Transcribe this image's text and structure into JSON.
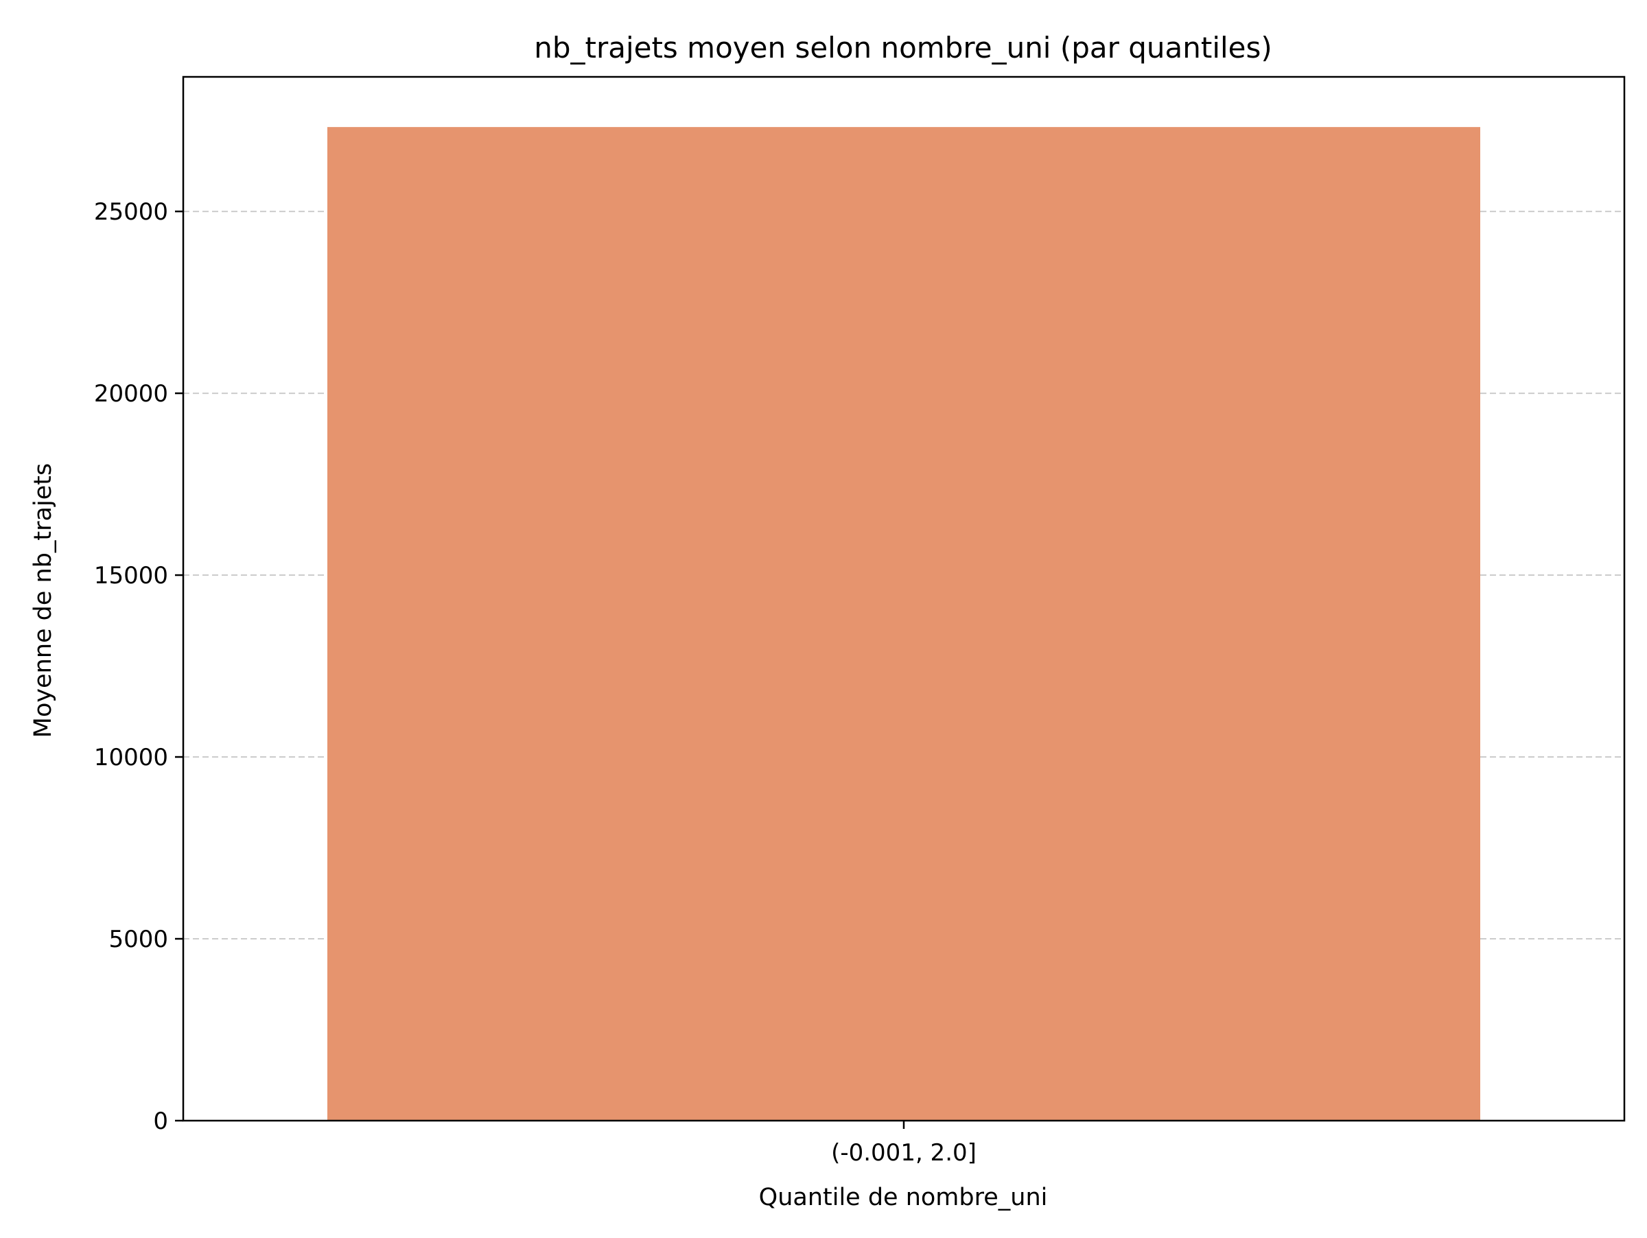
{
  "chart_data": {
    "type": "bar",
    "title": "nb_trajets moyen selon nombre_uni (par quantiles)",
    "xlabel": "Quantile de nombre_uni",
    "ylabel": "Moyenne de nb_trajets",
    "categories": [
      "(-0.001, 2.0]"
    ],
    "values": [
      27320
    ],
    "ylim": [
      0,
      28700
    ],
    "yticks": [
      0,
      5000,
      10000,
      15000,
      20000,
      25000
    ],
    "ytick_labels": [
      "0",
      "5000",
      "10000",
      "15000",
      "20000",
      "25000"
    ],
    "grid": "y, dashed",
    "bar_color": "#e6946e",
    "grid_color": "#cccccc",
    "legend": "none"
  }
}
